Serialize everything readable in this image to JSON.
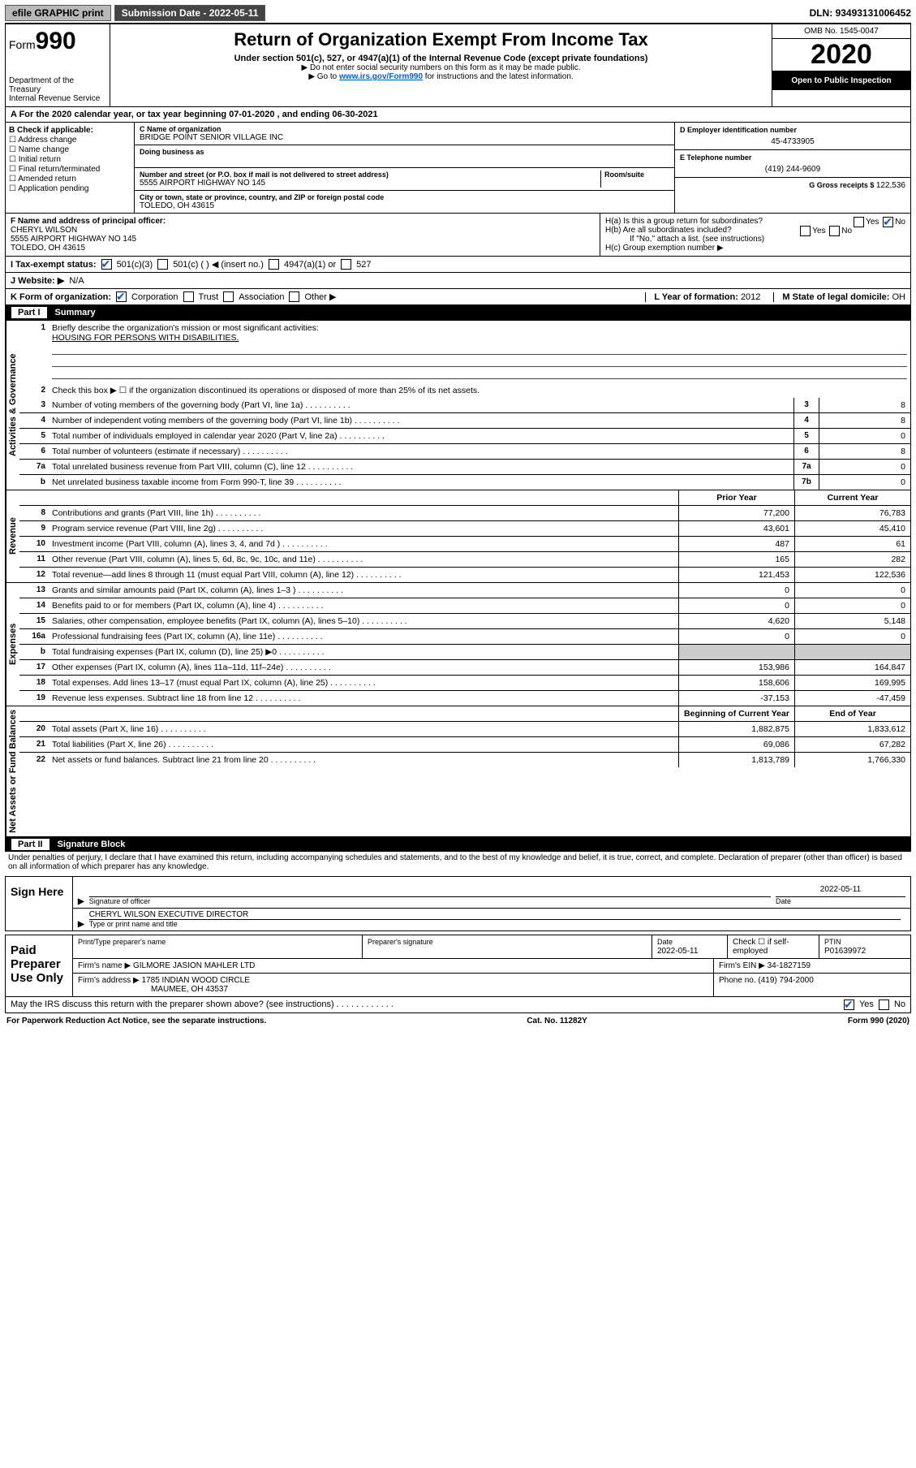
{
  "topbar": {
    "efile": "efile GRAPHIC print",
    "subdate_label": "Submission Date - ",
    "subdate": "2022-05-11",
    "dln_label": "DLN: ",
    "dln": "93493131006452"
  },
  "header": {
    "form_label": "Form",
    "form_num": "990",
    "dept1": "Department of the Treasury",
    "dept2": "Internal Revenue Service",
    "title": "Return of Organization Exempt From Income Tax",
    "sub": "Under section 501(c), 527, or 4947(a)(1) of the Internal Revenue Code (except private foundations)",
    "note1": "▶ Do not enter social security numbers on this form as it may be made public.",
    "note2a": "▶ Go to ",
    "link": "www.irs.gov/Form990",
    "note2b": " for instructions and the latest information.",
    "omb": "OMB No. 1545-0047",
    "year": "2020",
    "open": "Open to Public Inspection"
  },
  "periodA": "A For the 2020 calendar year, or tax year beginning 07-01-2020    , and ending 06-30-2021",
  "boxB": {
    "label": "B Check if applicable:",
    "opts": [
      "☐ Address change",
      "☐ Name change",
      "☐ Initial return",
      "☐ Final return/terminated",
      "☐ Amended return",
      "☐ Application pending"
    ]
  },
  "boxC": {
    "name_label": "C Name of organization",
    "name": "BRIDGE POINT SENIOR VILLAGE INC",
    "dba_label": "Doing business as",
    "street_label": "Number and street (or P.O. box if mail is not delivered to street address)",
    "room_label": "Room/suite",
    "street": "5555 AIRPORT HIGHWAY NO 145",
    "city_label": "City or town, state or province, country, and ZIP or foreign postal code",
    "city": "TOLEDO, OH  43615"
  },
  "boxD": {
    "label": "D Employer identification number",
    "val": "45-4733905"
  },
  "boxE": {
    "label": "E Telephone number",
    "val": "(419) 244-9609"
  },
  "boxG": {
    "label": "G Gross receipts $ ",
    "val": "122,536"
  },
  "boxF": {
    "label": "F  Name and address of principal officer:",
    "name": "CHERYL WILSON",
    "addr1": "5555 AIRPORT HIGHWAY NO 145",
    "addr2": "TOLEDO, OH  43615"
  },
  "boxH": {
    "a": "H(a)  Is this a group return for subordinates?",
    "b": "H(b)  Are all subordinates included?",
    "bnote": "If \"No,\" attach a list. (see instructions)",
    "c": "H(c)  Group exemption number ▶",
    "yes": "Yes",
    "no": "No"
  },
  "boxI": {
    "label": "I   Tax-exempt status:",
    "o1": "501(c)(3)",
    "o2": "501(c) (   ) ◀ (insert no.)",
    "o3": "4947(a)(1) or",
    "o4": "527"
  },
  "boxJ": {
    "label": "J   Website: ▶",
    "val": "N/A"
  },
  "boxK": {
    "label": "K Form of organization:",
    "o1": "Corporation",
    "o2": "Trust",
    "o3": "Association",
    "o4": "Other ▶"
  },
  "boxL": {
    "label": "L Year of formation: ",
    "val": "2012"
  },
  "boxM": {
    "label": "M State of legal domicile: ",
    "val": "OH"
  },
  "part1": {
    "title": "Part I",
    "name": "Summary"
  },
  "sections": {
    "gov": "Activities & Governance",
    "rev": "Revenue",
    "exp": "Expenses",
    "net": "Net Assets or Fund Balances"
  },
  "q1": {
    "n": "1",
    "t": "Briefly describe the organization's mission or most significant activities:",
    "v": "HOUSING FOR PERSONS WITH DISABILITIES."
  },
  "q2": {
    "n": "2",
    "t": "Check this box ▶ ☐  if the organization discontinued its operations or disposed of more than 25% of its net assets."
  },
  "lines_a": [
    {
      "n": "3",
      "t": "Number of voting members of the governing body (Part VI, line 1a)",
      "b": "3",
      "v": "8"
    },
    {
      "n": "4",
      "t": "Number of independent voting members of the governing body (Part VI, line 1b)",
      "b": "4",
      "v": "8"
    },
    {
      "n": "5",
      "t": "Total number of individuals employed in calendar year 2020 (Part V, line 2a)",
      "b": "5",
      "v": "0"
    },
    {
      "n": "6",
      "t": "Total number of volunteers (estimate if necessary)",
      "b": "6",
      "v": "8"
    },
    {
      "n": "7a",
      "t": "Total unrelated business revenue from Part VIII, column (C), line 12",
      "b": "7a",
      "v": "0"
    },
    {
      "n": "b",
      "t": "Net unrelated business taxable income from Form 990-T, line 39",
      "b": "7b",
      "v": "0"
    }
  ],
  "cols2": {
    "prior": "Prior Year",
    "curr": "Current Year"
  },
  "rev": [
    {
      "n": "8",
      "t": "Contributions and grants (Part VIII, line 1h)",
      "p": "77,200",
      "c": "76,783"
    },
    {
      "n": "9",
      "t": "Program service revenue (Part VIII, line 2g)",
      "p": "43,601",
      "c": "45,410"
    },
    {
      "n": "10",
      "t": "Investment income (Part VIII, column (A), lines 3, 4, and 7d )",
      "p": "487",
      "c": "61"
    },
    {
      "n": "11",
      "t": "Other revenue (Part VIII, column (A), lines 5, 6d, 8c, 9c, 10c, and 11e)",
      "p": "165",
      "c": "282"
    },
    {
      "n": "12",
      "t": "Total revenue—add lines 8 through 11 (must equal Part VIII, column (A), line 12)",
      "p": "121,453",
      "c": "122,536"
    }
  ],
  "exp": [
    {
      "n": "13",
      "t": "Grants and similar amounts paid (Part IX, column (A), lines 1–3 )",
      "p": "0",
      "c": "0"
    },
    {
      "n": "14",
      "t": "Benefits paid to or for members (Part IX, column (A), line 4)",
      "p": "0",
      "c": "0"
    },
    {
      "n": "15",
      "t": "Salaries, other compensation, employee benefits (Part IX, column (A), lines 5–10)",
      "p": "4,620",
      "c": "5,148"
    },
    {
      "n": "16a",
      "t": "Professional fundraising fees (Part IX, column (A), line 11e)",
      "p": "0",
      "c": "0"
    },
    {
      "n": "b",
      "t": "Total fundraising expenses (Part IX, column (D), line 25) ▶0",
      "p": "",
      "c": "",
      "shade": true
    },
    {
      "n": "17",
      "t": "Other expenses (Part IX, column (A), lines 11a–11d, 11f–24e)",
      "p": "153,986",
      "c": "164,847"
    },
    {
      "n": "18",
      "t": "Total expenses. Add lines 13–17 (must equal Part IX, column (A), line 25)",
      "p": "158,606",
      "c": "169,995"
    },
    {
      "n": "19",
      "t": "Revenue less expenses. Subtract line 18 from line 12",
      "p": "-37,153",
      "c": "-47,459"
    }
  ],
  "cols3": {
    "beg": "Beginning of Current Year",
    "end": "End of Year"
  },
  "net": [
    {
      "n": "20",
      "t": "Total assets (Part X, line 16)",
      "p": "1,882,875",
      "c": "1,833,612"
    },
    {
      "n": "21",
      "t": "Total liabilities (Part X, line 26)",
      "p": "69,086",
      "c": "67,282"
    },
    {
      "n": "22",
      "t": "Net assets or fund balances. Subtract line 21 from line 20",
      "p": "1,813,789",
      "c": "1,766,330"
    }
  ],
  "part2": {
    "title": "Part II",
    "name": "Signature Block"
  },
  "penalty": "Under penalties of perjury, I declare that I have examined this return, including accompanying schedules and statements, and to the best of my knowledge and belief, it is true, correct, and complete. Declaration of preparer (other than officer) is based on all information of which preparer has any knowledge.",
  "sign": {
    "here": "Sign Here",
    "sig_officer": "Signature of officer",
    "date": "Date",
    "date_v": "2022-05-11",
    "name": "CHERYL WILSON  EXECUTIVE DIRECTOR",
    "type": "Type or print name and title"
  },
  "prep": {
    "label": "Paid Preparer Use Only",
    "r1": {
      "a": "Print/Type preparer's name",
      "b": "Preparer's signature",
      "c": "Date",
      "cv": "2022-05-11",
      "d": "Check ☐ if self-employed",
      "e": "PTIN",
      "ev": "P01639972"
    },
    "r2": {
      "a": "Firm's name    ▶",
      "av": "GILMORE JASION MAHLER LTD",
      "b": "Firm's EIN ▶",
      "bv": "34-1827159"
    },
    "r3": {
      "a": "Firm's address ▶",
      "av": "1785 INDIAN WOOD CIRCLE",
      "b": "Phone no. ",
      "bv": "(419) 794-2000"
    },
    "r3b": "MAUMEE, OH  43537"
  },
  "irs_q": "May the IRS discuss this return with the preparer shown above? (see instructions)   .   .   .   .   .   .   .   .   .   .   .   .",
  "footer": {
    "a": "For Paperwork Reduction Act Notice, see the separate instructions.",
    "b": "Cat. No. 11282Y",
    "c": "Form 990 (2020)"
  }
}
